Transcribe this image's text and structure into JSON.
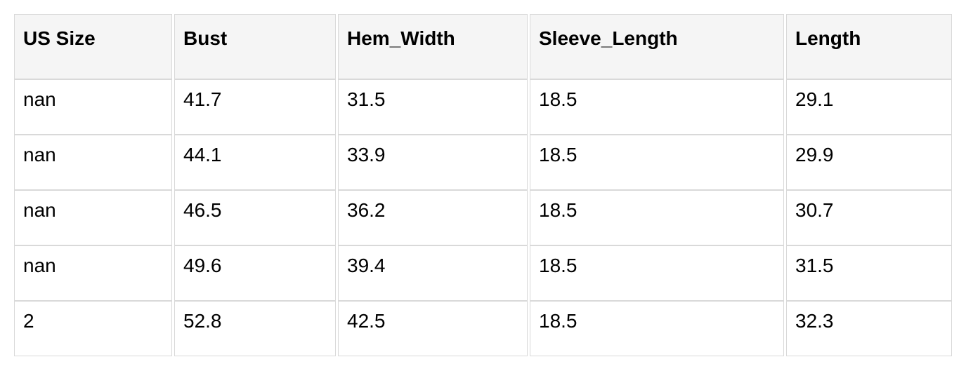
{
  "colors": {
    "page_bg": "#ffffff",
    "header_bg": "#f5f5f5",
    "border": "#d9d9d9",
    "text": "#000000"
  },
  "table": {
    "columns": [
      "US Size",
      "Bust",
      "Hem_Width",
      "Sleeve_Length",
      "Length"
    ],
    "rows": [
      [
        "nan",
        "41.7",
        "31.5",
        "18.5",
        "29.1"
      ],
      [
        "nan",
        "44.1",
        "33.9",
        "18.5",
        "29.9"
      ],
      [
        "nan",
        "46.5",
        "36.2",
        "18.5",
        "30.7"
      ],
      [
        "nan",
        "49.6",
        "39.4",
        "18.5",
        "31.5"
      ],
      [
        "2",
        "52.8",
        "42.5",
        "18.5",
        "32.3"
      ]
    ]
  },
  "chart_data": {
    "type": "table",
    "title": "",
    "columns": [
      "US Size",
      "Bust",
      "Hem_Width",
      "Sleeve_Length",
      "Length"
    ],
    "rows": [
      [
        "nan",
        "41.7",
        "31.5",
        "18.5",
        "29.1"
      ],
      [
        "nan",
        "44.1",
        "33.9",
        "18.5",
        "29.9"
      ],
      [
        "nan",
        "46.5",
        "36.2",
        "18.5",
        "30.7"
      ],
      [
        "nan",
        "49.6",
        "39.4",
        "18.5",
        "31.5"
      ],
      [
        "2",
        "52.8",
        "42.5",
        "18.5",
        "32.3"
      ]
    ]
  }
}
